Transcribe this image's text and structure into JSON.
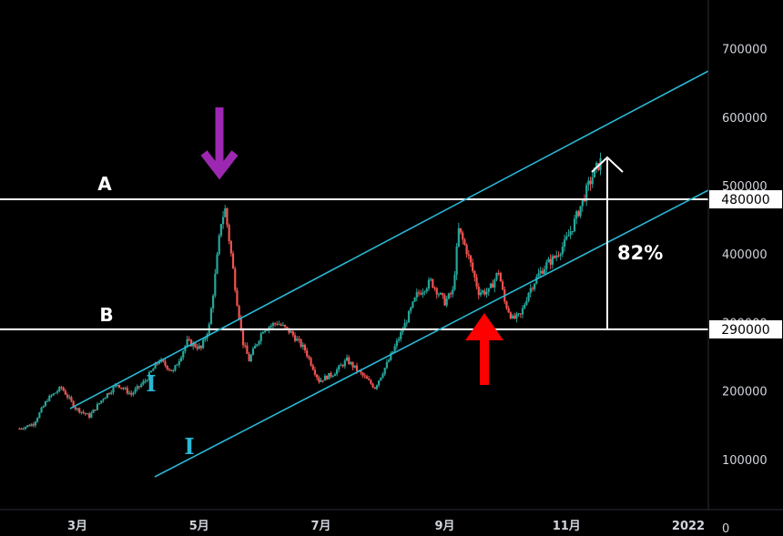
{
  "chart_data": {
    "type": "candlestick",
    "x_ticks": [
      "3月",
      "5月",
      "7月",
      "9月",
      "11月",
      "2022"
    ],
    "y_ticks": [
      0,
      100000,
      200000,
      300000,
      400000,
      500000,
      600000,
      700000
    ],
    "ylim": [
      0,
      730000
    ],
    "xlim": [
      "2021-01-28",
      "2022-02-10"
    ],
    "series": [
      {
        "values": [
          [
            "2021-01-31",
            145000
          ],
          [
            "2021-02-07",
            152000
          ],
          [
            "2021-02-14",
            188000
          ],
          [
            "2021-02-21",
            205000
          ],
          [
            "2021-02-28",
            175000
          ],
          [
            "2021-03-07",
            163000
          ],
          [
            "2021-03-14",
            190000
          ],
          [
            "2021-03-21",
            210000
          ],
          [
            "2021-03-28",
            195000
          ],
          [
            "2021-04-04",
            215000
          ],
          [
            "2021-04-11",
            245000
          ],
          [
            "2021-04-18",
            228000
          ],
          [
            "2021-04-25",
            272000
          ],
          [
            "2021-05-02",
            262000
          ],
          [
            "2021-05-06",
            295000
          ],
          [
            "2021-05-09",
            368000
          ],
          [
            "2021-05-12",
            448000
          ],
          [
            "2021-05-14",
            465000
          ],
          [
            "2021-05-17",
            400000
          ],
          [
            "2021-05-20",
            330000
          ],
          [
            "2021-05-23",
            270000
          ],
          [
            "2021-05-26",
            245000
          ],
          [
            "2021-06-02",
            290000
          ],
          [
            "2021-06-09",
            300000
          ],
          [
            "2021-06-16",
            285000
          ],
          [
            "2021-06-23",
            260000
          ],
          [
            "2021-06-30",
            215000
          ],
          [
            "2021-07-07",
            225000
          ],
          [
            "2021-07-14",
            245000
          ],
          [
            "2021-07-21",
            225000
          ],
          [
            "2021-07-28",
            205000
          ],
          [
            "2021-08-04",
            245000
          ],
          [
            "2021-08-11",
            290000
          ],
          [
            "2021-08-18",
            340000
          ],
          [
            "2021-08-25",
            360000
          ],
          [
            "2021-09-01",
            330000
          ],
          [
            "2021-09-05",
            345000
          ],
          [
            "2021-09-08",
            435000
          ],
          [
            "2021-09-12",
            405000
          ],
          [
            "2021-09-18",
            345000
          ],
          [
            "2021-09-23",
            345000
          ],
          [
            "2021-09-28",
            375000
          ],
          [
            "2021-10-01",
            330000
          ],
          [
            "2021-10-05",
            305000
          ],
          [
            "2021-10-09",
            310000
          ],
          [
            "2021-10-13",
            345000
          ],
          [
            "2021-10-18",
            370000
          ],
          [
            "2021-10-22",
            385000
          ],
          [
            "2021-10-26",
            395000
          ],
          [
            "2021-10-31",
            415000
          ],
          [
            "2021-11-04",
            440000
          ],
          [
            "2021-11-08",
            470000
          ],
          [
            "2021-11-12",
            500000
          ],
          [
            "2021-11-15",
            520000
          ],
          [
            "2021-11-18",
            535000
          ]
        ]
      }
    ],
    "horizontal_lines": [
      {
        "label": "A",
        "value": 480000
      },
      {
        "label": "B",
        "value": 290000
      }
    ],
    "price_tags": [
      "480000",
      "290000"
    ],
    "channel_labels": [
      "I",
      "I"
    ],
    "percent_label": "82%",
    "colors": {
      "background": "#000000",
      "up": "#26a69a",
      "down": "#ef5350",
      "channel": "#2ab7d4",
      "level_line": "#ffffff",
      "top_arrow": "#9c27b0",
      "bottom_arrow": "#ff0000"
    },
    "annotations": [
      "down-arrow at peak (purple)",
      "up-arrow at channel low (red)",
      "upward measure arrow (white)"
    ],
    "grid": false
  }
}
